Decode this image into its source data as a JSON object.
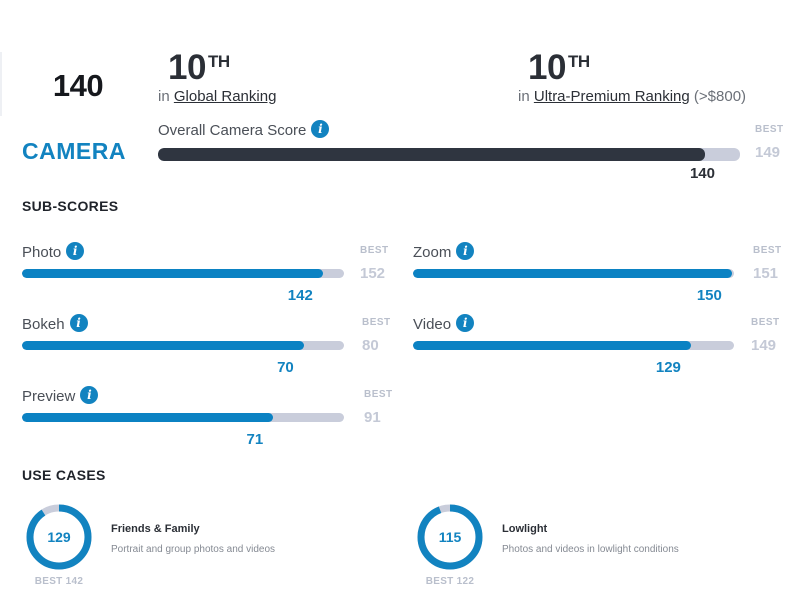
{
  "header": {
    "main_score": "140",
    "category": "CAMERA",
    "global_rank": {
      "number": "10",
      "suffix": "TH",
      "prefix": "in",
      "link": "Global Ranking",
      "extra": ""
    },
    "segment_rank": {
      "number": "10",
      "suffix": "TH",
      "prefix": "in",
      "link": "Ultra-Premium Ranking",
      "extra": "(>$800)"
    }
  },
  "overall": {
    "label": "Overall Camera Score",
    "value": 140,
    "value_text": "140",
    "best_label": "BEST",
    "best": 149,
    "best_text": "149"
  },
  "sub_scores": {
    "title": "SUB-SCORES",
    "items": [
      {
        "label": "Photo",
        "value": 142,
        "value_text": "142",
        "best": 152,
        "best_text": "152",
        "best_label": "BEST"
      },
      {
        "label": "Zoom",
        "value": 150,
        "value_text": "150",
        "best": 151,
        "best_text": "151",
        "best_label": "BEST"
      },
      {
        "label": "Bokeh",
        "value": 70,
        "value_text": "70",
        "best": 80,
        "best_text": "80",
        "best_label": "BEST"
      },
      {
        "label": "Video",
        "value": 129,
        "value_text": "129",
        "best": 149,
        "best_text": "149",
        "best_label": "BEST"
      },
      {
        "label": "Preview",
        "value": 71,
        "value_text": "71",
        "best": 91,
        "best_text": "91",
        "best_label": "BEST"
      }
    ]
  },
  "use_cases": {
    "title": "USE CASES",
    "items": [
      {
        "value": 129,
        "value_text": "129",
        "best": 142,
        "best_text": "BEST 142",
        "title": "Friends & Family",
        "desc": "Portrait and group photos and videos"
      },
      {
        "value": 115,
        "value_text": "115",
        "best": 122,
        "best_text": "BEST 122",
        "title": "Lowlight",
        "desc": "Photos and videos in lowlight conditions"
      }
    ]
  },
  "icons": {
    "info": "i"
  },
  "colors": {
    "accent": "#1283c0",
    "dark_bar": "#2f3540",
    "track": "#c9cddb",
    "best_text": "#c4c9d6"
  }
}
